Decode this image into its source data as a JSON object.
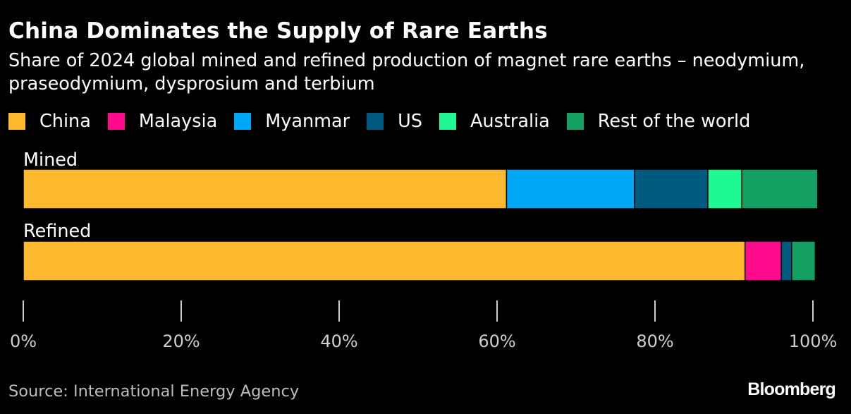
{
  "header": {
    "title": "China Dominates the Supply of Rare Earths",
    "subtitle": "Share of 2024 global mined and refined production of magnet rare earths – neodymium, praseodymium, dysprosium and terbium"
  },
  "footer": {
    "source": "Source: International Energy Agency",
    "brand": "Bloomberg"
  },
  "chart_data": {
    "type": "bar",
    "orientation": "horizontal",
    "stacked": true,
    "categories": [
      "Mined",
      "Refined"
    ],
    "series": [
      {
        "name": "China",
        "color": "#ffb92e",
        "values": [
          61.2,
          91.4
        ]
      },
      {
        "name": "Malaysia",
        "color": "#ff0a8c",
        "values": [
          0,
          4.6
        ]
      },
      {
        "name": "Myanmar",
        "color": "#00a8f7",
        "values": [
          16.2,
          0
        ]
      },
      {
        "name": "US",
        "color": "#005a80",
        "values": [
          9.3,
          1.3
        ]
      },
      {
        "name": "Australia",
        "color": "#1ff993",
        "values": [
          4.3,
          0
        ]
      },
      {
        "name": "Rest of the world",
        "color": "#13a062",
        "values": [
          9.6,
          3.0
        ]
      }
    ],
    "x_ticks": [
      "0%",
      "20%",
      "40%",
      "60%",
      "80%",
      "100%"
    ],
    "x_tick_values": [
      0,
      20,
      40,
      60,
      80,
      100
    ],
    "xlim": [
      0,
      100
    ],
    "legend_position": "top",
    "grid": false
  }
}
